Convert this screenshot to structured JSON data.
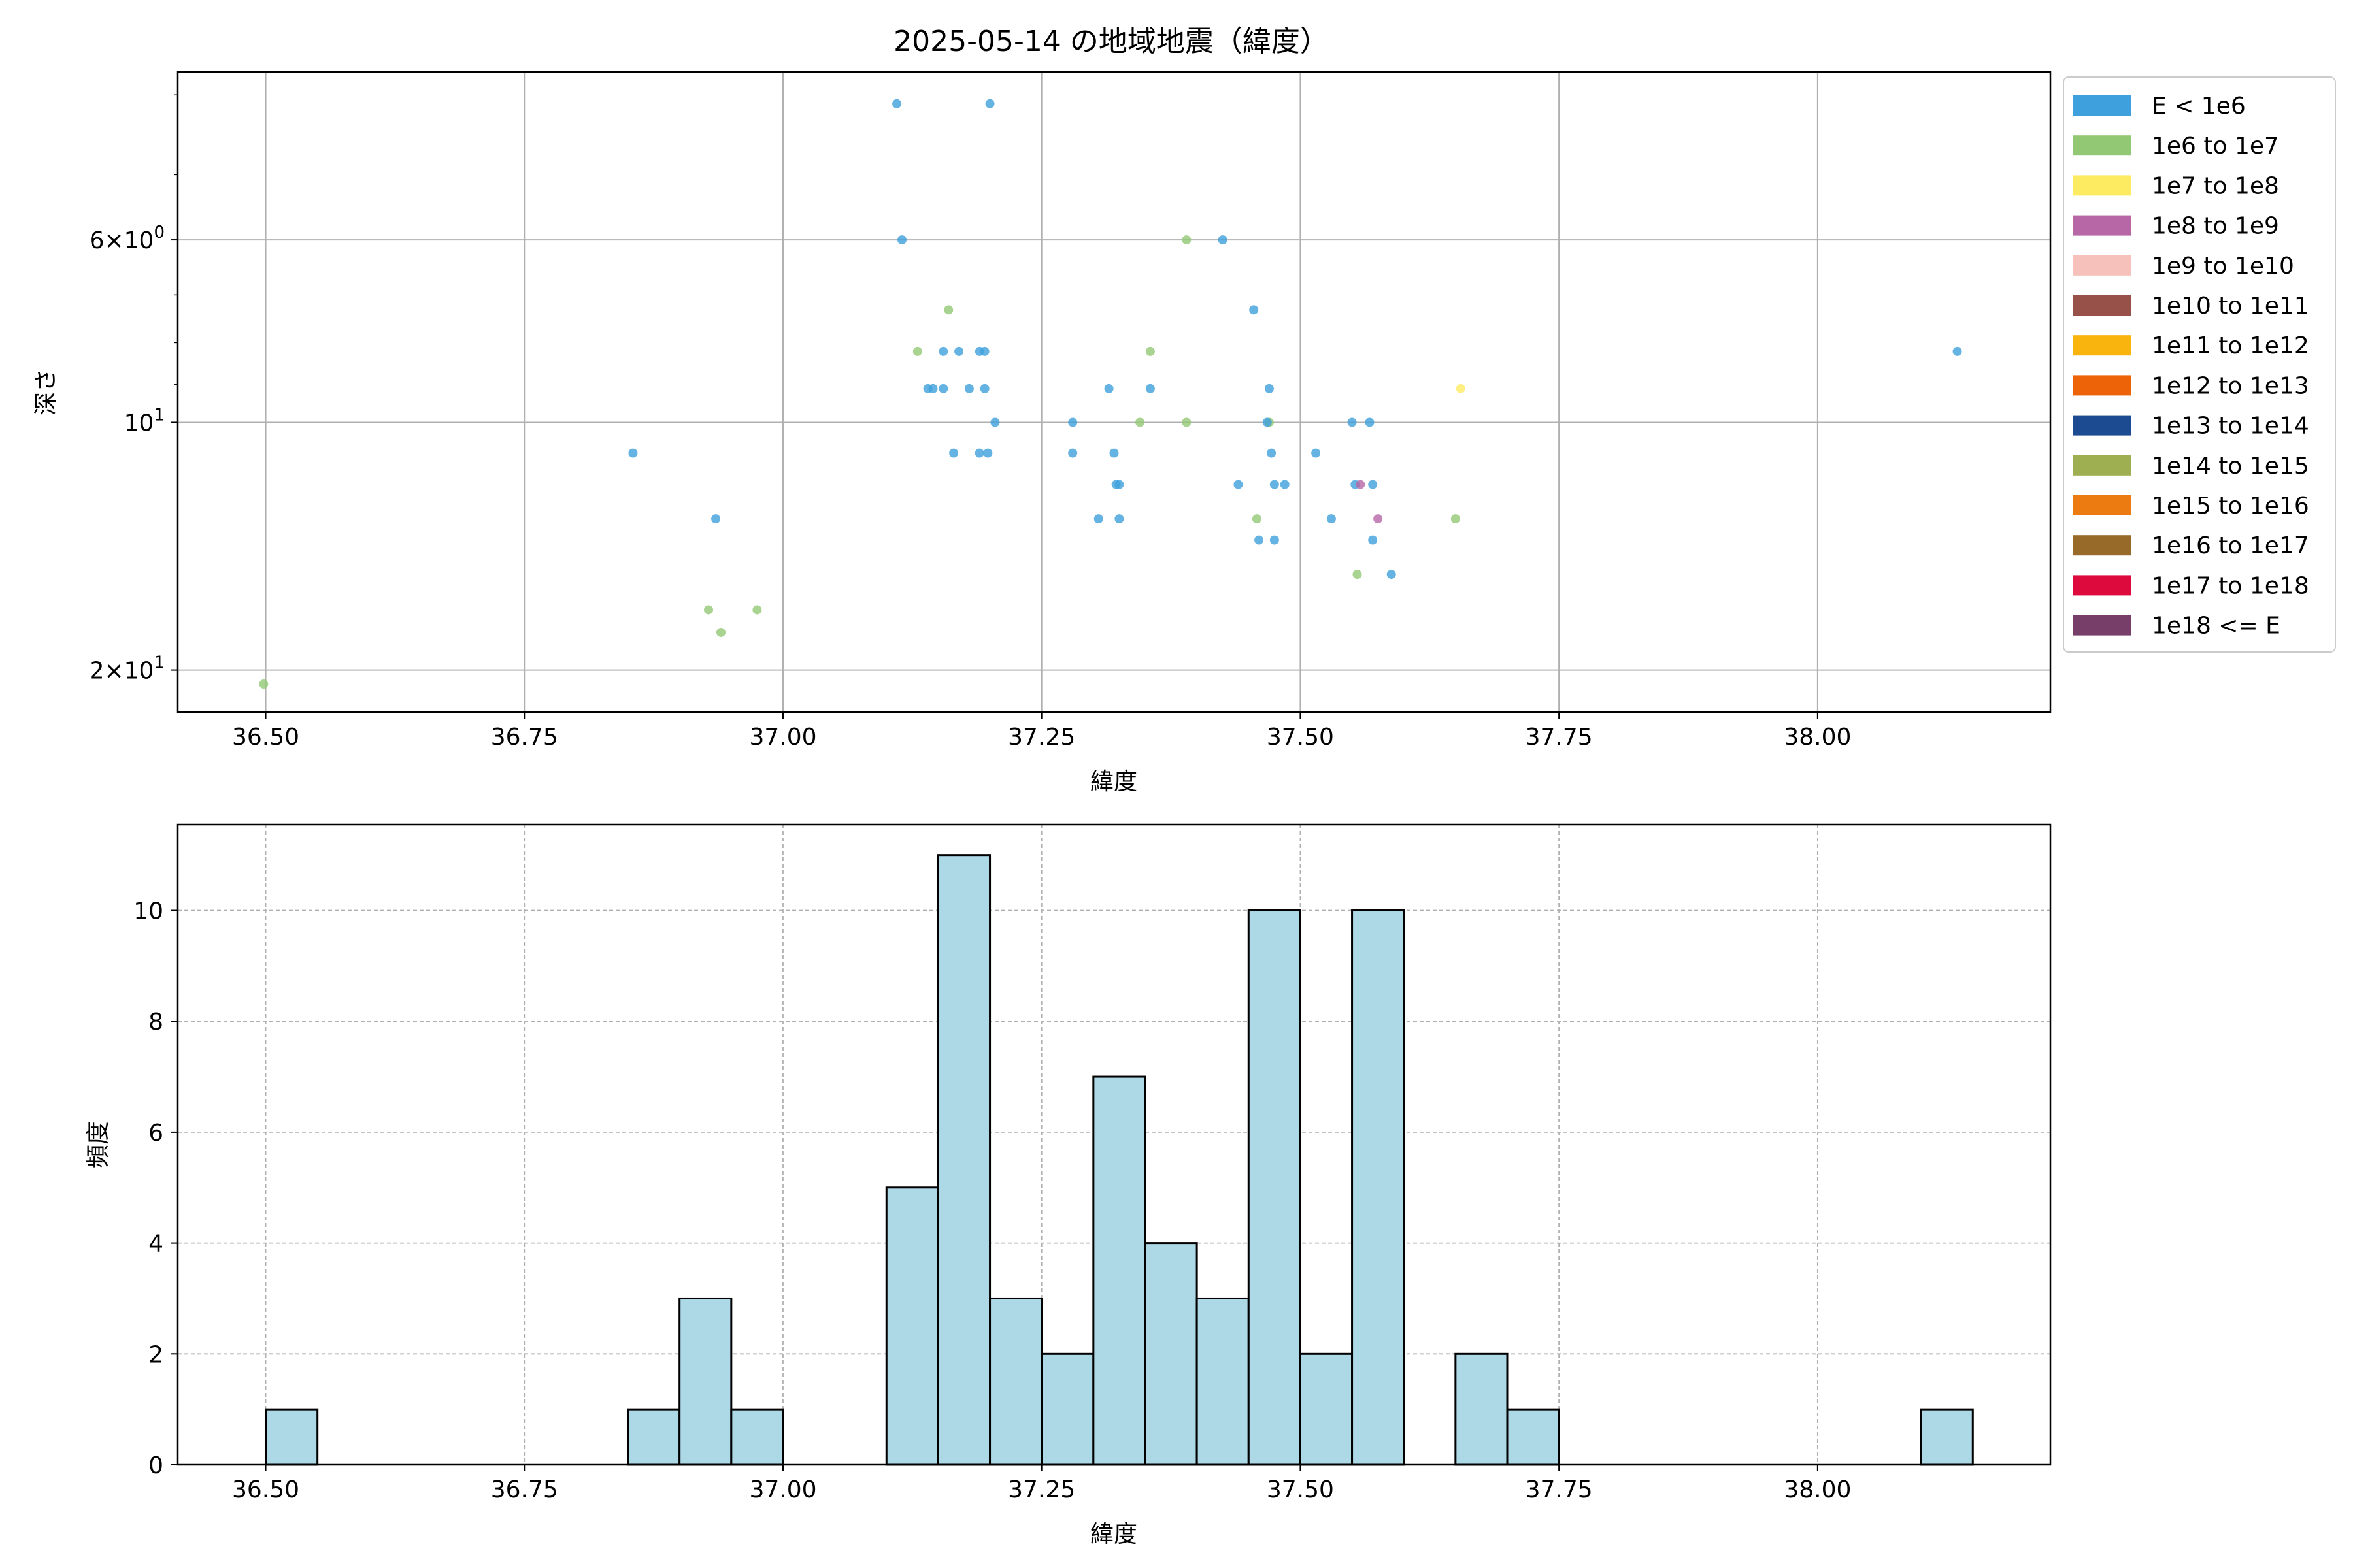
{
  "chart_data": [
    {
      "type": "scatter",
      "title": "2025-05-14 の地域地震（緯度）",
      "xlabel": "緯度",
      "ylabel": "深さ",
      "xlim": [
        36.415,
        38.225
      ],
      "ylim": [
        22.5,
        3.75
      ],
      "y_scale": "log",
      "y_inverted": true,
      "grid": true,
      "legend_position": "outside-right",
      "xticks": [
        "36.50",
        "36.75",
        "37.00",
        "37.25",
        "37.50",
        "37.75",
        "38.00"
      ],
      "yticks": [
        {
          "value": 6,
          "mantissa": "6",
          "exponent": "0"
        },
        {
          "value": 10,
          "mantissa": "",
          "exponent": "1"
        },
        {
          "value": 20,
          "mantissa": "2",
          "exponent": "1"
        }
      ],
      "legend": [
        {
          "label": "E < 1e6",
          "color": "#3ea0dc"
        },
        {
          "label": "1e6 to 1e7",
          "color": "#92c874"
        },
        {
          "label": "1e7 to 1e8",
          "color": "#fdeb62"
        },
        {
          "label": "1e8 to 1e9",
          "color": "#b766a6"
        },
        {
          "label": "1e9 to 1e10",
          "color": "#f6c1bb"
        },
        {
          "label": "1e10 to 1e11",
          "color": "#975149"
        },
        {
          "label": "1e11 to 1e12",
          "color": "#f9b40d"
        },
        {
          "label": "1e12 to 1e13",
          "color": "#ec6407"
        },
        {
          "label": "1e13 to 1e14",
          "color": "#1d4b91"
        },
        {
          "label": "1e14 to 1e15",
          "color": "#9eaf51"
        },
        {
          "label": "1e15 to 1e16",
          "color": "#ec7b11"
        },
        {
          "label": "1e16 to 1e17",
          "color": "#976a2a"
        },
        {
          "label": "1e17 to 1e18",
          "color": "#dd0a3e"
        },
        {
          "label": "1e18 <= E",
          "color": "#773e69"
        }
      ],
      "points": [
        {
          "lat": 37.11,
          "depth": 4.1,
          "cls": 0
        },
        {
          "lat": 37.2,
          "depth": 4.1,
          "cls": 0
        },
        {
          "lat": 37.115,
          "depth": 6.0,
          "cls": 0
        },
        {
          "lat": 37.425,
          "depth": 6.0,
          "cls": 0
        },
        {
          "lat": 37.39,
          "depth": 6.0,
          "cls": 1
        },
        {
          "lat": 37.16,
          "depth": 7.3,
          "cls": 1
        },
        {
          "lat": 37.455,
          "depth": 7.3,
          "cls": 0
        },
        {
          "lat": 37.13,
          "depth": 8.2,
          "cls": 1
        },
        {
          "lat": 37.155,
          "depth": 8.2,
          "cls": 0
        },
        {
          "lat": 37.17,
          "depth": 8.2,
          "cls": 0
        },
        {
          "lat": 37.19,
          "depth": 8.2,
          "cls": 0
        },
        {
          "lat": 37.195,
          "depth": 8.2,
          "cls": 0
        },
        {
          "lat": 37.355,
          "depth": 8.2,
          "cls": 1
        },
        {
          "lat": 38.135,
          "depth": 8.2,
          "cls": 0
        },
        {
          "lat": 37.14,
          "depth": 9.1,
          "cls": 0
        },
        {
          "lat": 37.145,
          "depth": 9.1,
          "cls": 0
        },
        {
          "lat": 37.155,
          "depth": 9.1,
          "cls": 0
        },
        {
          "lat": 37.18,
          "depth": 9.1,
          "cls": 0
        },
        {
          "lat": 37.195,
          "depth": 9.1,
          "cls": 0
        },
        {
          "lat": 37.315,
          "depth": 9.1,
          "cls": 0
        },
        {
          "lat": 37.355,
          "depth": 9.1,
          "cls": 0
        },
        {
          "lat": 37.47,
          "depth": 9.1,
          "cls": 0
        },
        {
          "lat": 37.655,
          "depth": 9.1,
          "cls": 2
        },
        {
          "lat": 37.205,
          "depth": 10.0,
          "cls": 0
        },
        {
          "lat": 37.28,
          "depth": 10.0,
          "cls": 0
        },
        {
          "lat": 37.345,
          "depth": 10.0,
          "cls": 1
        },
        {
          "lat": 37.39,
          "depth": 10.0,
          "cls": 1
        },
        {
          "lat": 37.47,
          "depth": 10.0,
          "cls": 1
        },
        {
          "lat": 37.468,
          "depth": 10.0,
          "cls": 0
        },
        {
          "lat": 37.55,
          "depth": 10.0,
          "cls": 0
        },
        {
          "lat": 37.567,
          "depth": 10.0,
          "cls": 0
        },
        {
          "lat": 36.855,
          "depth": 10.9,
          "cls": 0
        },
        {
          "lat": 37.165,
          "depth": 10.9,
          "cls": 0
        },
        {
          "lat": 37.19,
          "depth": 10.9,
          "cls": 0
        },
        {
          "lat": 37.198,
          "depth": 10.9,
          "cls": 0
        },
        {
          "lat": 37.28,
          "depth": 10.9,
          "cls": 0
        },
        {
          "lat": 37.32,
          "depth": 10.9,
          "cls": 0
        },
        {
          "lat": 37.472,
          "depth": 10.9,
          "cls": 0
        },
        {
          "lat": 37.515,
          "depth": 10.9,
          "cls": 0
        },
        {
          "lat": 37.322,
          "depth": 11.9,
          "cls": 0
        },
        {
          "lat": 37.325,
          "depth": 11.9,
          "cls": 0
        },
        {
          "lat": 37.44,
          "depth": 11.9,
          "cls": 0
        },
        {
          "lat": 37.475,
          "depth": 11.9,
          "cls": 0
        },
        {
          "lat": 37.485,
          "depth": 11.9,
          "cls": 0
        },
        {
          "lat": 37.553,
          "depth": 11.9,
          "cls": 0
        },
        {
          "lat": 37.558,
          "depth": 11.9,
          "cls": 3
        },
        {
          "lat": 37.57,
          "depth": 11.9,
          "cls": 0
        },
        {
          "lat": 36.935,
          "depth": 13.1,
          "cls": 0
        },
        {
          "lat": 37.305,
          "depth": 13.1,
          "cls": 0
        },
        {
          "lat": 37.325,
          "depth": 13.1,
          "cls": 0
        },
        {
          "lat": 37.458,
          "depth": 13.1,
          "cls": 1
        },
        {
          "lat": 37.53,
          "depth": 13.1,
          "cls": 0
        },
        {
          "lat": 37.575,
          "depth": 13.1,
          "cls": 3
        },
        {
          "lat": 37.65,
          "depth": 13.1,
          "cls": 1
        },
        {
          "lat": 37.46,
          "depth": 13.9,
          "cls": 0
        },
        {
          "lat": 37.475,
          "depth": 13.9,
          "cls": 0
        },
        {
          "lat": 37.57,
          "depth": 13.9,
          "cls": 0
        },
        {
          "lat": 37.555,
          "depth": 15.3,
          "cls": 1
        },
        {
          "lat": 37.588,
          "depth": 15.3,
          "cls": 0
        },
        {
          "lat": 36.928,
          "depth": 16.9,
          "cls": 1
        },
        {
          "lat": 36.975,
          "depth": 16.9,
          "cls": 1
        },
        {
          "lat": 36.94,
          "depth": 18.0,
          "cls": 1
        },
        {
          "lat": 36.498,
          "depth": 20.8,
          "cls": 1
        }
      ]
    },
    {
      "type": "bar",
      "subtype": "histogram",
      "title": "",
      "xlabel": "緯度",
      "ylabel": "頻度",
      "xlim": [
        36.415,
        38.225
      ],
      "ylim": [
        0,
        11.55
      ],
      "grid": true,
      "bar_color": "#add8e6",
      "xticks": [
        "36.50",
        "36.75",
        "37.00",
        "37.25",
        "37.50",
        "37.75",
        "38.00"
      ],
      "yticks": [
        "0",
        "2",
        "4",
        "6",
        "8",
        "10"
      ],
      "bin_width": 0.05,
      "bins": [
        {
          "start": 36.5,
          "count": 1
        },
        {
          "start": 36.85,
          "count": 1
        },
        {
          "start": 36.9,
          "count": 3
        },
        {
          "start": 36.95,
          "count": 1
        },
        {
          "start": 37.1,
          "count": 5
        },
        {
          "start": 37.15,
          "count": 11
        },
        {
          "start": 37.2,
          "count": 3
        },
        {
          "start": 37.25,
          "count": 2
        },
        {
          "start": 37.3,
          "count": 7
        },
        {
          "start": 37.35,
          "count": 4
        },
        {
          "start": 37.4,
          "count": 3
        },
        {
          "start": 37.45,
          "count": 10
        },
        {
          "start": 37.5,
          "count": 2
        },
        {
          "start": 37.55,
          "count": 10
        },
        {
          "start": 37.65,
          "count": 2
        },
        {
          "start": 37.7,
          "count": 1
        },
        {
          "start": 38.1,
          "count": 1
        }
      ]
    }
  ]
}
